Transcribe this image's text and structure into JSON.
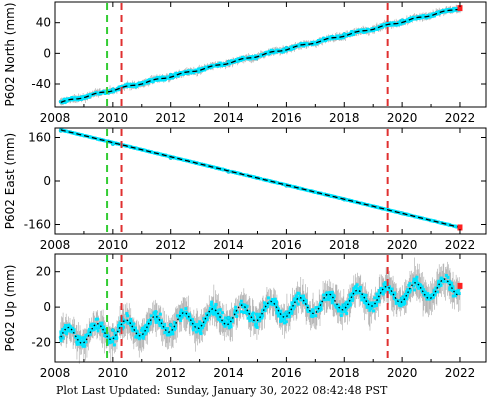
{
  "footer": {
    "label": "Plot Last Updated:",
    "value": "Sunday, January 30, 2022 08:42:48 PST"
  },
  "colors": {
    "data_points": "#00e5ff",
    "error_bars": "#a8a8a8",
    "model_line": "#000000",
    "offset_marker": "#ff2020",
    "equipment_change_line": "#e03030",
    "earthquake_line": "#33cc33"
  },
  "chart_data": [
    {
      "type": "scatter",
      "ylabel": "P602 North (mm)",
      "xlim": [
        2008.0,
        2022.9
      ],
      "ylim": [
        -70,
        67
      ],
      "xticks": [
        2008,
        2010,
        2012,
        2014,
        2016,
        2018,
        2020,
        2022
      ],
      "yticks": [
        -40,
        0,
        40
      ],
      "x": [
        2008.2,
        2010.0,
        2012.0,
        2014.0,
        2016.0,
        2018.0,
        2020.0,
        2022.0
      ],
      "y": [
        -63,
        -47,
        -28,
        -11,
        7,
        25,
        43,
        58
      ],
      "trend": {
        "start": [
          2008.2,
          -64
        ],
        "end": [
          2022.0,
          59
        ]
      },
      "error_band": 4,
      "seasonal_amplitude": 1,
      "vlines": [
        {
          "x": 2009.8,
          "kind": "earthquake"
        },
        {
          "x": 2010.3,
          "kind": "equipment"
        },
        {
          "x": 2019.5,
          "kind": "equipment"
        }
      ],
      "grid": false
    },
    {
      "type": "scatter",
      "ylabel": "P602 East (mm)",
      "xlim": [
        2008.0,
        2022.9
      ],
      "ylim": [
        -195,
        195
      ],
      "xticks": [
        2008,
        2010,
        2012,
        2014,
        2016,
        2018,
        2020,
        2022
      ],
      "yticks": [
        -160,
        0,
        160
      ],
      "x": [
        2008.2,
        2010.0,
        2012.0,
        2014.0,
        2016.0,
        2018.0,
        2020.0,
        2022.0
      ],
      "y": [
        185,
        136,
        85,
        34,
        -17,
        -68,
        -119,
        -168
      ],
      "trend": {
        "start": [
          2008.2,
          188
        ],
        "end": [
          2022.0,
          -171
        ]
      },
      "error_band": 2,
      "seasonal_amplitude": 0,
      "vlines": [
        {
          "x": 2009.8,
          "kind": "earthquake"
        },
        {
          "x": 2010.3,
          "kind": "equipment"
        },
        {
          "x": 2019.5,
          "kind": "equipment"
        }
      ],
      "grid": false
    },
    {
      "type": "scatter",
      "ylabel": "P602 Up (mm)",
      "xlim": [
        2008.0,
        2022.9
      ],
      "ylim": [
        -31,
        30
      ],
      "xticks": [
        2008,
        2010,
        2012,
        2014,
        2016,
        2018,
        2020,
        2022
      ],
      "yticks": [
        -20,
        0,
        20
      ],
      "x": [
        2008.2,
        2010.0,
        2012.0,
        2014.0,
        2016.0,
        2018.0,
        2020.0,
        2022.0
      ],
      "y": [
        -17,
        -13,
        -10,
        -6,
        -3,
        1,
        5,
        11
      ],
      "trend": {
        "start": [
          2008.2,
          -17
        ],
        "end": [
          2022.0,
          12
        ]
      },
      "error_band": 7,
      "seasonal_amplitude": 5,
      "vlines": [
        {
          "x": 2009.8,
          "kind": "earthquake"
        },
        {
          "x": 2010.3,
          "kind": "equipment"
        },
        {
          "x": 2019.5,
          "kind": "equipment"
        }
      ],
      "grid": false
    }
  ]
}
